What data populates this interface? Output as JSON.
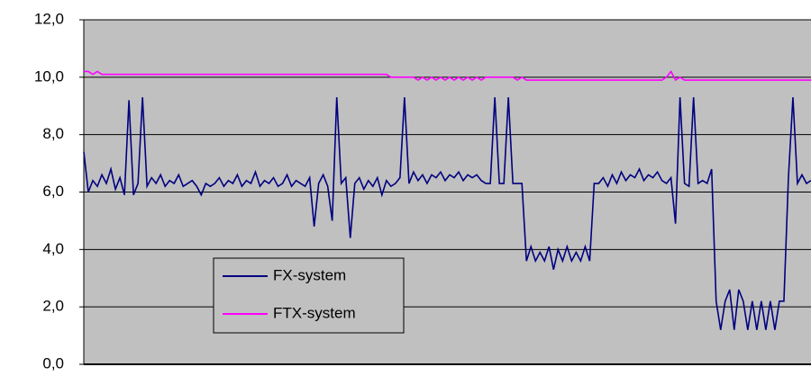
{
  "chart_data": {
    "type": "line",
    "ylim": [
      0,
      12
    ],
    "yticks": [
      {
        "value": 0,
        "label": "0,0"
      },
      {
        "value": 2,
        "label": "2,0"
      },
      {
        "value": 4,
        "label": "4,0"
      },
      {
        "value": 6,
        "label": "6,0"
      },
      {
        "value": 8,
        "label": "8,0"
      },
      {
        "value": 10,
        "label": "10,0"
      },
      {
        "value": 12,
        "label": "12,0"
      }
    ],
    "grid": true,
    "legend": "lower-left",
    "series": [
      {
        "name": "FX-system",
        "color": "#000080",
        "values": [
          7.4,
          6.0,
          6.4,
          6.2,
          6.6,
          6.3,
          6.8,
          6.1,
          6.5,
          5.9,
          9.2,
          5.9,
          6.3,
          9.3,
          6.2,
          6.5,
          6.3,
          6.6,
          6.2,
          6.4,
          6.3,
          6.6,
          6.2,
          6.3,
          6.4,
          6.2,
          5.9,
          6.3,
          6.2,
          6.3,
          6.5,
          6.2,
          6.4,
          6.3,
          6.6,
          6.2,
          6.4,
          6.3,
          6.7,
          6.2,
          6.4,
          6.3,
          6.5,
          6.2,
          6.3,
          6.6,
          6.2,
          6.4,
          6.3,
          6.2,
          6.5,
          4.8,
          6.3,
          6.6,
          6.2,
          5.0,
          9.3,
          6.3,
          6.5,
          4.4,
          6.3,
          6.5,
          6.1,
          6.4,
          6.2,
          6.5,
          5.9,
          6.4,
          6.2,
          6.3,
          6.5,
          9.3,
          6.3,
          6.7,
          6.4,
          6.6,
          6.3,
          6.6,
          6.5,
          6.7,
          6.4,
          6.6,
          6.5,
          6.7,
          6.4,
          6.6,
          6.5,
          6.6,
          6.4,
          6.3,
          6.3,
          9.3,
          6.3,
          6.3,
          9.3,
          6.3,
          6.3,
          6.3,
          3.6,
          4.1,
          3.6,
          3.9,
          3.6,
          4.1,
          3.3,
          4.0,
          3.6,
          4.1,
          3.6,
          3.9,
          3.6,
          4.1,
          3.6,
          6.3,
          6.3,
          6.5,
          6.2,
          6.6,
          6.3,
          6.7,
          6.4,
          6.6,
          6.5,
          6.8,
          6.4,
          6.6,
          6.5,
          6.7,
          6.4,
          6.3,
          6.5,
          4.9,
          9.3,
          6.3,
          6.2,
          9.3,
          6.3,
          6.4,
          6.3,
          6.8,
          2.2,
          1.2,
          2.2,
          2.6,
          1.2,
          2.6,
          2.2,
          1.2,
          2.2,
          1.2,
          2.2,
          1.2,
          2.2,
          1.2,
          2.2,
          2.2,
          6.5,
          9.3,
          6.3,
          6.6,
          6.3,
          6.4
        ]
      },
      {
        "name": "FTX-system",
        "color": "#ff00ff",
        "values": [
          10.2,
          10.2,
          10.1,
          10.2,
          10.1,
          10.1,
          10.1,
          10.1,
          10.1,
          10.1,
          10.1,
          10.1,
          10.1,
          10.1,
          10.1,
          10.1,
          10.1,
          10.1,
          10.1,
          10.1,
          10.1,
          10.1,
          10.1,
          10.1,
          10.1,
          10.1,
          10.1,
          10.1,
          10.1,
          10.1,
          10.1,
          10.1,
          10.1,
          10.1,
          10.1,
          10.1,
          10.1,
          10.1,
          10.1,
          10.1,
          10.1,
          10.1,
          10.1,
          10.1,
          10.1,
          10.1,
          10.1,
          10.1,
          10.1,
          10.1,
          10.1,
          10.1,
          10.1,
          10.1,
          10.1,
          10.1,
          10.1,
          10.1,
          10.1,
          10.1,
          10.1,
          10.1,
          10.1,
          10.1,
          10.1,
          10.1,
          10.1,
          10.1,
          10.0,
          10.0,
          10.0,
          10.0,
          10.0,
          10.0,
          9.9,
          10.0,
          9.9,
          10.0,
          9.9,
          10.0,
          9.9,
          10.0,
          9.9,
          10.0,
          9.9,
          10.0,
          9.9,
          10.0,
          9.9,
          10.0,
          10.0,
          10.0,
          10.0,
          10.0,
          10.0,
          10.0,
          9.9,
          10.0,
          9.9,
          9.9,
          9.9,
          9.9,
          9.9,
          9.9,
          9.9,
          9.9,
          9.9,
          9.9,
          9.9,
          9.9,
          9.9,
          9.9,
          9.9,
          9.9,
          9.9,
          9.9,
          9.9,
          9.9,
          9.9,
          9.9,
          9.9,
          9.9,
          9.9,
          9.9,
          9.9,
          9.9,
          9.9,
          9.9,
          9.9,
          10.0,
          10.2,
          9.9,
          10.0,
          9.9,
          9.9,
          9.9,
          9.9,
          9.9,
          9.9,
          9.9,
          9.9,
          9.9,
          9.9,
          9.9,
          9.9,
          9.9,
          9.9,
          9.9,
          9.9,
          9.9,
          9.9,
          9.9,
          9.9,
          9.9,
          9.9,
          9.9,
          9.9,
          9.9,
          9.9,
          9.9,
          9.9,
          9.9
        ]
      }
    ]
  }
}
